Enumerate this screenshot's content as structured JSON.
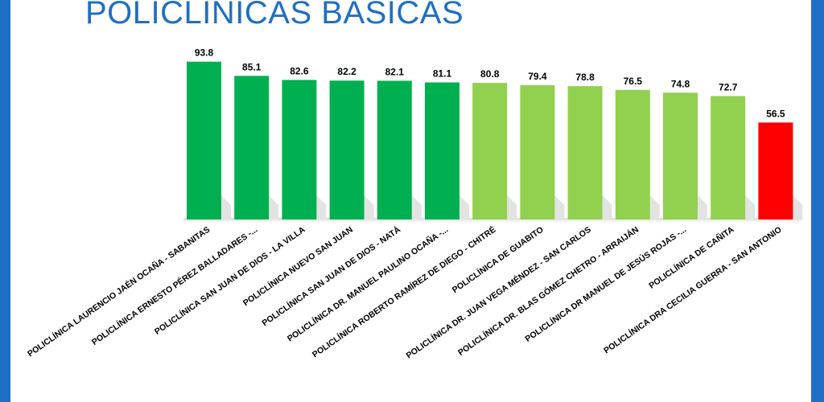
{
  "title": "POLICLÍNICAS BÁSICAS",
  "colors": {
    "frame": "#1f6fc4",
    "dark_green": "#00b050",
    "light_green": "#92d050",
    "red": "#ff0000"
  },
  "chart_data": {
    "type": "bar",
    "categories": [
      "POLICLÍNICA LAURENCIO JAÉN OCAÑA - SABANITAS",
      "POLICLÍNICA ERNESTO PÉREZ BALLADARES -...",
      "POLICLÍNICA SAN JUAN DE DIOS - LA VILLA",
      "POLICLÍNICA NUEVO SAN JUAN",
      "POLICLÍNICA SAN JUAN DE DIOS - NATÁ",
      "POLICLÍNICA DR. MANUEL PAULINO OCAÑA -...",
      "POLICLÍNICA ROBERTO RAMÍREZ DE DIEGO - CHITRÉ",
      "POLICLÍNICA DE GUABITO",
      "POLICLÍNICA DR. JUAN VEGA MÉNDEZ - SAN CARLOS",
      "POLICLÍNICA DR. BLAS GÓMEZ CHETRO - ARRAIJÁN",
      "POLICLÍNICA DR MANUEL DE JESÚS ROJAS -...",
      "POLICLÍNICA DE CAÑITA",
      "POLICLÍNICA DRA CECILIA GUERRA - SAN ANTONIO"
    ],
    "values": [
      93.8,
      85.1,
      82.6,
      82.2,
      82.1,
      81.1,
      80.8,
      79.4,
      78.8,
      76.5,
      74.8,
      72.7,
      56.5
    ],
    "value_labels": [
      "93.8",
      "85.1",
      "82.6",
      "82.2",
      "82.1",
      "81.1",
      "80.8",
      "79.4",
      "78.8",
      "76.5",
      "74.8",
      "72.7",
      "56.5"
    ],
    "bar_colors": [
      "#00b050",
      "#00b050",
      "#00b050",
      "#00b050",
      "#00b050",
      "#00b050",
      "#92d050",
      "#92d050",
      "#92d050",
      "#92d050",
      "#92d050",
      "#92d050",
      "#ff0000"
    ],
    "ylim": [
      0,
      100
    ],
    "grid": false,
    "legend": "none"
  }
}
